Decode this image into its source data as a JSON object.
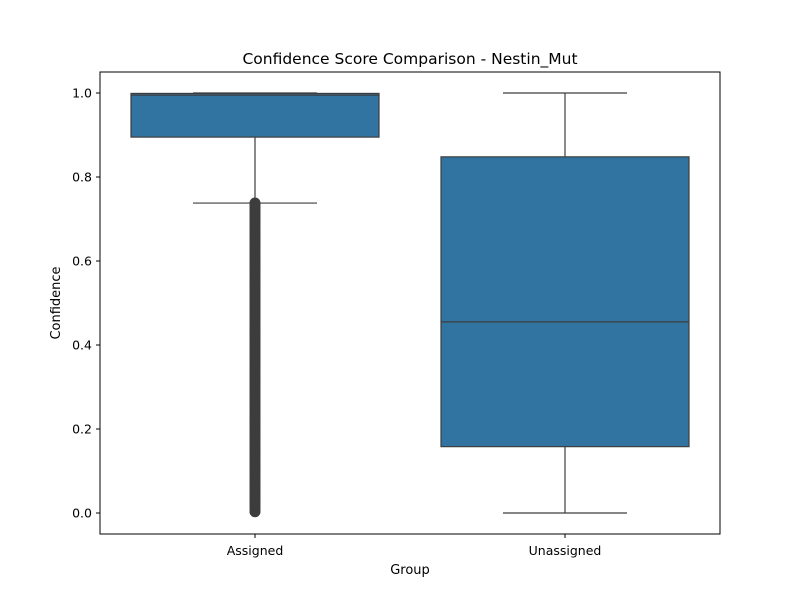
{
  "chart_data": {
    "type": "box",
    "title": "Confidence Score Comparison - Nestin_Mut",
    "xlabel": "Group",
    "ylabel": "Confidence",
    "ylim": [
      -0.05,
      1.05
    ],
    "yticks": [
      0.0,
      0.2,
      0.4,
      0.6,
      0.8,
      1.0
    ],
    "ytick_labels": [
      "0.0",
      "0.2",
      "0.4",
      "0.6",
      "0.8",
      "1.0"
    ],
    "grid": false,
    "legend": "none",
    "box_color": "#3274a1",
    "line_color": "#3d3d3d",
    "categories": [
      "Assigned",
      "Unassigned"
    ],
    "boxes": [
      {
        "category": "Assigned",
        "whisker_low": 0.738,
        "q1": 0.895,
        "median": 0.995,
        "q3": 0.999,
        "whisker_high": 1.0,
        "outliers_range": [
          0.003,
          0.738
        ]
      },
      {
        "category": "Unassigned",
        "whisker_low": 0.0,
        "q1": 0.158,
        "median": 0.455,
        "q3": 0.848,
        "whisker_high": 1.0,
        "outliers_range": null
      }
    ]
  }
}
